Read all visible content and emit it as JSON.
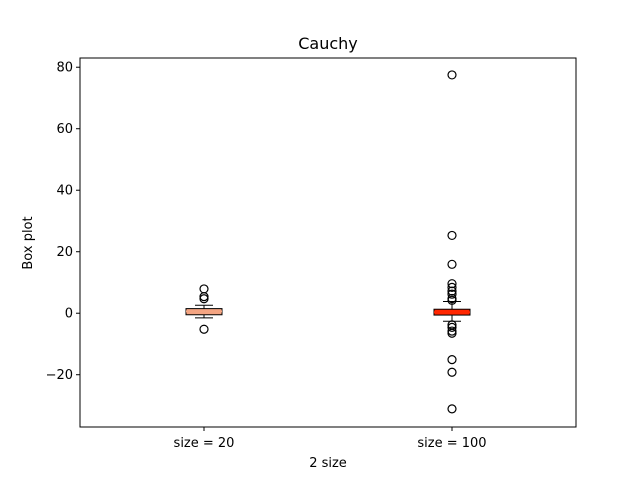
{
  "chart_data": {
    "type": "box",
    "title": "Cauchy",
    "xlabel": "2 size",
    "ylabel": "Box plot",
    "ylim": [
      -37,
      83
    ],
    "yticks": [
      -20,
      0,
      20,
      40,
      60,
      80
    ],
    "categories": [
      "size = 20",
      "size = 100"
    ],
    "series": [
      {
        "category": "size = 20",
        "box_color": "#f4a582",
        "median_color": "#f4a582",
        "q1": -0.5,
        "median": 0.6,
        "q3": 1.5,
        "whisker_low": -1.5,
        "whisker_high": 2.6,
        "outliers": [
          7.9,
          5.4,
          4.7,
          -5.2
        ]
      },
      {
        "category": "size = 100",
        "box_color": "#ff2600",
        "median_color": "#ff2600",
        "q1": -0.6,
        "median": 0.3,
        "q3": 1.3,
        "whisker_low": -2.6,
        "whisker_high": 3.8,
        "outliers": [
          77.5,
          25.3,
          15.9,
          9.6,
          8.4,
          7.2,
          6.2,
          4.8,
          4.2,
          -3.8,
          -4.6,
          -5.8,
          -6.5,
          -15.1,
          -19.2,
          -31.1
        ]
      }
    ],
    "grid": false,
    "legend": "none"
  }
}
